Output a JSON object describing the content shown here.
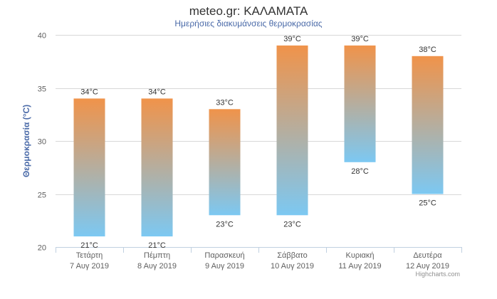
{
  "chart_data": {
    "type": "bar",
    "variant": "columnrange",
    "title": "meteo.gr: ΚΑΛΑΜΑΤΑ",
    "subtitle": "Ημερήσιες διακυμάνσεις θερμοκρασίας",
    "ylabel": "Θερμοκρασία (°C)",
    "xlabel": "",
    "ylim": [
      20,
      40
    ],
    "yticks": [
      "20",
      "25",
      "30",
      "35",
      "40"
    ],
    "grid": true,
    "legend": "none",
    "credits": "Highcharts.com",
    "categories": [
      [
        "Τετάρτη",
        "7 Αυγ 2019"
      ],
      [
        "Πέμπτη",
        "8 Αυγ 2019"
      ],
      [
        "Παρασκευή",
        "9 Αυγ 2019"
      ],
      [
        "Σάββατο",
        "10 Αυγ 2019"
      ],
      [
        "Κυριακή",
        "11 Αυγ 2019"
      ],
      [
        "Δευτέρα",
        "12 Αυγ 2019"
      ]
    ],
    "series": [
      {
        "low": [
          21,
          21,
          23,
          23,
          28,
          25
        ],
        "high": [
          34,
          34,
          33,
          39,
          39,
          38
        ],
        "low_labels": [
          "21°C",
          "21°C",
          "23°C",
          "23°C",
          "28°C",
          "25°C"
        ],
        "high_labels": [
          "34°C",
          "34°C",
          "33°C",
          "39°C",
          "39°C",
          "38°C"
        ]
      }
    ],
    "colors": {
      "bar_top": "#f0934a",
      "bar_bottom": "#7cc8f2",
      "grid": "#d8d8d8",
      "axis_title": "#4a6aa8",
      "subtitle": "#4a6aa8"
    }
  }
}
